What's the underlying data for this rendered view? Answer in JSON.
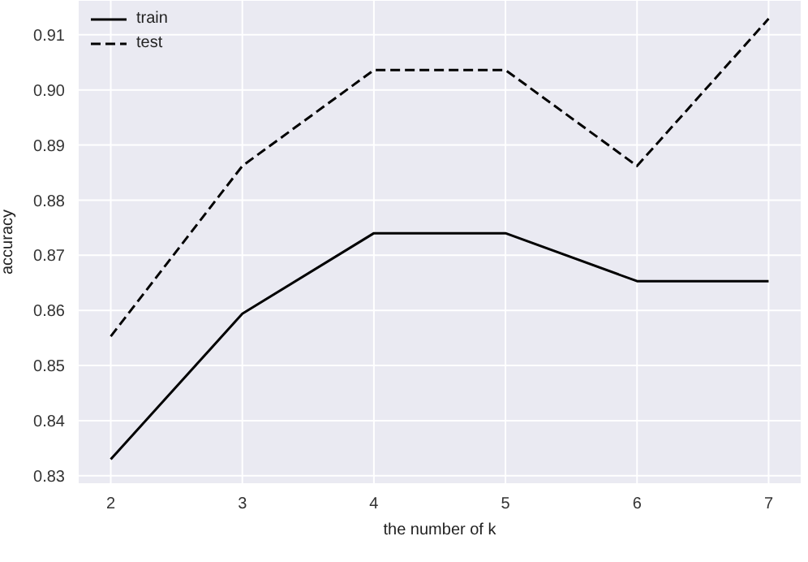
{
  "chart_data": {
    "type": "line",
    "xlabel": "the number of k",
    "ylabel": "accuracy",
    "x": [
      2,
      3,
      4,
      5,
      6,
      7
    ],
    "series": [
      {
        "name": "train",
        "color": "#000000",
        "line_style": "solid",
        "values": [
          0.833,
          0.8594,
          0.874,
          0.874,
          0.8653,
          0.8653
        ]
      },
      {
        "name": "test",
        "color": "#000000",
        "line_style": "dashed",
        "values": [
          0.8553,
          0.8862,
          0.9036,
          0.9036,
          0.8862,
          0.9129
        ]
      }
    ],
    "xlim": [
      1.75,
      7.25
    ],
    "xticks": [
      2,
      3,
      4,
      5,
      6,
      7
    ],
    "ylim": [
      0.8285,
      0.9163
    ],
    "yticks": [
      0.83,
      0.84,
      0.85,
      0.86,
      0.87,
      0.88,
      0.89,
      {
        "value": 0.9,
        "label": "0.90"
      },
      0.91
    ],
    "grid": true,
    "legend": "top left",
    "marker": "none"
  }
}
